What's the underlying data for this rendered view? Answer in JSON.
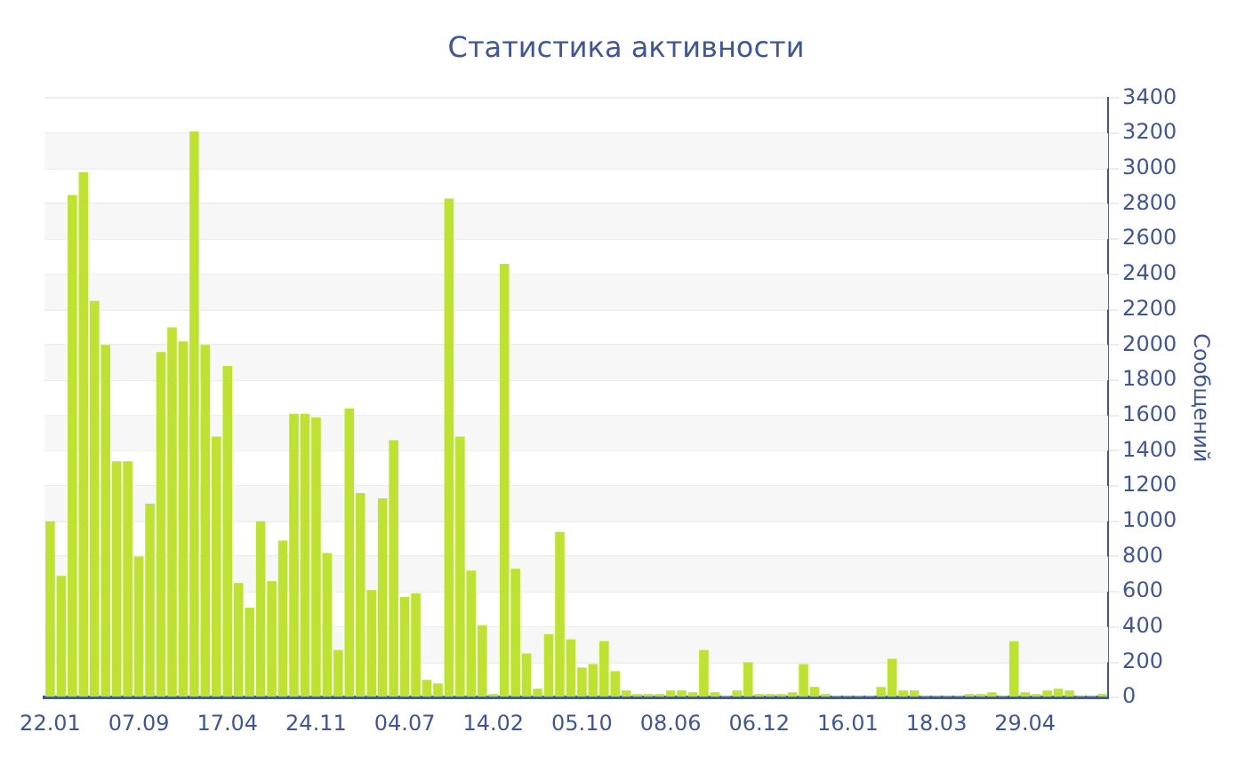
{
  "chart_data": {
    "type": "bar",
    "title": "Статистика активности",
    "ylabel": "Сообщений",
    "categories": [
      "22.01",
      null,
      null,
      null,
      null,
      null,
      null,
      null,
      "07.09",
      null,
      null,
      null,
      null,
      null,
      null,
      null,
      "17.04",
      null,
      null,
      null,
      null,
      null,
      null,
      null,
      "24.11",
      null,
      null,
      null,
      null,
      null,
      null,
      null,
      "04.07",
      null,
      null,
      null,
      null,
      null,
      null,
      null,
      "14.02",
      null,
      null,
      null,
      null,
      null,
      null,
      null,
      "05.10",
      null,
      null,
      null,
      null,
      null,
      null,
      null,
      "08.06",
      null,
      null,
      null,
      null,
      null,
      null,
      null,
      "06.12",
      null,
      null,
      null,
      null,
      null,
      null,
      null,
      "16.01",
      null,
      null,
      null,
      null,
      null,
      null,
      null,
      "18.03",
      null,
      null,
      null,
      null,
      null,
      null,
      null,
      "29.04",
      null,
      null,
      null,
      null,
      null,
      null,
      null
    ],
    "values": [
      1000,
      690,
      2850,
      2980,
      2250,
      2000,
      1340,
      1340,
      800,
      1100,
      1960,
      2100,
      2020,
      3210,
      2000,
      1480,
      1880,
      650,
      510,
      1000,
      660,
      890,
      1610,
      1610,
      1590,
      820,
      270,
      1640,
      1160,
      610,
      1130,
      1460,
      570,
      590,
      100,
      80,
      2830,
      1480,
      720,
      410,
      20,
      2460,
      730,
      250,
      50,
      360,
      940,
      330,
      170,
      190,
      320,
      150,
      40,
      20,
      20,
      20,
      40,
      40,
      30,
      270,
      30,
      10,
      40,
      200,
      20,
      20,
      20,
      30,
      190,
      60,
      20,
      10,
      10,
      10,
      10,
      60,
      220,
      40,
      40,
      10,
      10,
      10,
      10,
      20,
      20,
      30,
      10,
      320,
      30,
      20,
      40,
      50,
      40,
      10,
      10,
      20
    ],
    "color": "#bde22f",
    "ylim": [
      0,
      3400
    ],
    "yticks": [
      0,
      200,
      400,
      600,
      800,
      1000,
      1200,
      1400,
      1600,
      1800,
      2000,
      2200,
      2400,
      2600,
      2800,
      3000,
      3200,
      3400
    ],
    "grid": "y",
    "legend": false
  }
}
